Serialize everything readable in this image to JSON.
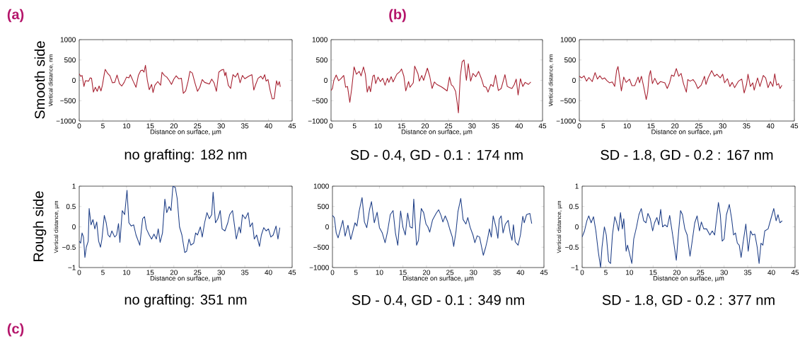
{
  "chart_data": [
    {
      "type": "line",
      "xlabel": "Distance on surface, µm",
      "ylabel": "Vertical distance, nm",
      "color": "#a51d2d",
      "xlim": [
        0,
        45
      ],
      "xticks": [
        0,
        5,
        10,
        15,
        20,
        25,
        30,
        35,
        40,
        45
      ],
      "ylim": [
        -1000,
        1000
      ],
      "yticks": [
        {
          "value": -1000,
          "label": "−1000"
        },
        {
          "value": -500,
          "label": "−500"
        },
        0,
        500,
        1000
      ],
      "annotations": [
        "(a)",
        "Smooth side",
        "no grafting: 182 nm"
      ],
      "x": [
        0,
        0.3,
        0.6,
        1,
        1.3,
        2,
        2.3,
        2.6,
        3,
        3.4,
        3.8,
        4.2,
        4.6,
        4.9,
        5.3,
        5.5,
        6,
        6.5,
        7,
        7.5,
        8,
        8.5,
        9,
        9.5,
        10,
        10.5,
        10.8,
        11.4,
        12,
        12.5,
        13,
        13.4,
        13.7,
        14,
        14.4,
        14.8,
        15.3,
        15.6,
        16,
        16.6,
        17.2,
        17.5,
        18,
        18.5,
        19,
        19.5,
        20,
        20.5,
        21,
        21.6,
        22,
        22.5,
        23,
        23.4,
        23.9,
        24.5,
        25,
        25.5,
        26,
        26.5,
        27.5,
        28,
        28.5,
        29,
        29.5,
        30,
        30.5,
        30.8,
        31,
        31.5,
        32,
        32.5,
        33,
        33.5,
        34,
        34.5,
        35,
        35.8,
        36.5,
        36.9,
        37.3,
        37.8,
        38.4,
        38.8,
        39.2,
        39.5,
        39.9,
        40.4,
        40.8,
        41.2,
        41.7,
        42,
        42.3,
        42.5
      ],
      "values": [
        160,
        100,
        120,
        -150,
        -10,
        -20,
        60,
        50,
        -290,
        -170,
        -270,
        -140,
        -260,
        -120,
        160,
        270,
        170,
        110,
        -60,
        -50,
        130,
        -80,
        -140,
        -50,
        80,
        60,
        140,
        -20,
        -170,
        120,
        240,
        250,
        200,
        370,
        0,
        -230,
        -100,
        -300,
        -120,
        -30,
        -120,
        200,
        120,
        80,
        0,
        -100,
        30,
        110,
        40,
        50,
        -320,
        -260,
        -30,
        220,
        180,
        -80,
        -270,
        -170,
        20,
        -50,
        -90,
        30,
        -60,
        -270,
        200,
        250,
        270,
        110,
        200,
        -120,
        -200,
        140,
        80,
        180,
        -60,
        120,
        40,
        100,
        140,
        -240,
        -100,
        50,
        100,
        30,
        140,
        -20,
        20,
        -270,
        -460,
        -450,
        -10,
        -120,
        -30,
        -160
      ]
    },
    {
      "type": "line",
      "xlabel": "Distance on surface, µm",
      "color": "#a51d2d",
      "xlim": [
        0,
        45
      ],
      "xticks": [
        0,
        5,
        10,
        15,
        20,
        25,
        30,
        35,
        40,
        45
      ],
      "ylim": [
        -1000,
        1000
      ],
      "yticks": [
        {
          "value": -1000,
          "label": "−1000"
        },
        {
          "value": -500,
          "label": "−500"
        },
        0,
        500,
        1000
      ],
      "annotations": [
        "(b)",
        "SD - 0.4, GD - 0.1 : 174 nm"
      ],
      "x": [
        0,
        0.3,
        0.6,
        1.1,
        1.6,
        2.1,
        2.7,
        3.1,
        3.5,
        4,
        4.4,
        4.9,
        5.4,
        6,
        6.4,
        6.9,
        7.3,
        7.7,
        8.1,
        8.4,
        8.9,
        9.2,
        9.5,
        10,
        10.5,
        11,
        11.5,
        12,
        12.3,
        12.8,
        13.2,
        14,
        14.7,
        15,
        15.5,
        15.9,
        16.5,
        16.8,
        17.5,
        17.8,
        18.5,
        18.8,
        19.3,
        19.7,
        20.5,
        21,
        21.5,
        22,
        22.5,
        23.5,
        24,
        24.7,
        25.2,
        25.6,
        26,
        26.5,
        26.9,
        27.1,
        27.5,
        27.9,
        28.3,
        28.8,
        29.2,
        29.7,
        30.2,
        30.8,
        31.4,
        32,
        32.5,
        33,
        33.4,
        34,
        34.5,
        35,
        35.6,
        36.2,
        36.8,
        37,
        37.5,
        38,
        38.5,
        39,
        39.4,
        39.8,
        40.3,
        40.8,
        41.3,
        42,
        42.5
      ],
      "values": [
        -250,
        -200,
        0,
        130,
        -10,
        40,
        120,
        -170,
        -150,
        -540,
        -200,
        330,
        150,
        220,
        110,
        330,
        150,
        -290,
        -140,
        -280,
        100,
        130,
        -80,
        80,
        -30,
        50,
        -120,
        50,
        -50,
        90,
        -40,
        150,
        220,
        280,
        100,
        -260,
        -30,
        -170,
        -60,
        350,
        160,
        -20,
        120,
        0,
        300,
        100,
        -200,
        -40,
        -100,
        -160,
        -200,
        -260,
        80,
        -110,
        -150,
        -270,
        -600,
        -800,
        100,
        460,
        500,
        0,
        410,
        -20,
        170,
        90,
        220,
        40,
        -150,
        -170,
        -290,
        -100,
        -150,
        130,
        -250,
        -200,
        50,
        140,
        -150,
        -180,
        -200,
        -100,
        30,
        -360,
        40,
        -150,
        -50,
        -100,
        -40
      ]
    },
    {
      "type": "line",
      "xlabel": "Distance on surface, µm",
      "ylabel": "Vertical distance, nm",
      "color": "#a51d2d",
      "xlim": [
        0,
        45
      ],
      "xticks": [
        0,
        5,
        10,
        15,
        20,
        25,
        30,
        35,
        40,
        45
      ],
      "ylim": [
        -1000,
        1000
      ],
      "yticks": [
        {
          "value": -1000,
          "label": "−1000"
        },
        {
          "value": -500,
          "label": "−500"
        },
        0,
        500,
        1000
      ],
      "annotations": [
        "SD - 1.8, GD - 0.2 : 167 nm"
      ],
      "x": [
        0,
        0.5,
        1,
        1.5,
        2,
        2.7,
        3.3,
        3.8,
        4.3,
        4.8,
        5.3,
        5.8,
        6.3,
        6.9,
        7.4,
        7.8,
        8.1,
        8.5,
        8.8,
        9.3,
        9.8,
        10.5,
        11,
        11.6,
        12.3,
        12.6,
        13,
        13.5,
        14,
        14.3,
        14.6,
        14.9,
        15.3,
        15.8,
        16.4,
        17,
        17.9,
        18.4,
        18.9,
        19.3,
        19.8,
        20.3,
        20.8,
        21.3,
        21.8,
        22.4,
        22.7,
        23.2,
        23.8,
        24.3,
        24.8,
        25.5,
        26.2,
        26.5,
        27,
        27.7,
        28.3,
        28.8,
        29.5,
        30,
        30.4,
        31,
        31.5,
        32,
        32.5,
        33.3,
        34,
        34.5,
        35,
        35.3,
        35.8,
        36.3,
        36.6,
        37.3,
        37.8,
        38.5,
        39,
        39.5,
        40,
        40.5,
        40.9,
        41.3,
        41.7,
        42,
        42.4
      ],
      "values": [
        100,
        60,
        110,
        -20,
        70,
        -30,
        190,
        30,
        110,
        30,
        60,
        -10,
        -60,
        -40,
        -150,
        240,
        340,
        0,
        -260,
        80,
        -50,
        30,
        -130,
        -130,
        80,
        -60,
        100,
        -170,
        -470,
        -300,
        100,
        240,
        -80,
        50,
        -100,
        -30,
        -60,
        -200,
        -60,
        130,
        100,
        290,
        100,
        170,
        -80,
        -290,
        20,
        -20,
        20,
        -60,
        -200,
        -120,
        100,
        -100,
        70,
        240,
        100,
        150,
        60,
        150,
        -60,
        40,
        -150,
        -50,
        -180,
        -20,
        30,
        -310,
        -100,
        150,
        -150,
        -60,
        -240,
        60,
        -150,
        120,
        60,
        -180,
        -30,
        -150,
        160,
        -120,
        -80,
        -200,
        -120
      ]
    },
    {
      "type": "line",
      "xlabel": "Distance on surface, µm",
      "ylabel": "Vertical distance, µm",
      "color": "#1f3f87",
      "xlim": [
        0,
        45
      ],
      "xticks": [
        0,
        5,
        10,
        15,
        20,
        25,
        30,
        35,
        40,
        45
      ],
      "ylim": [
        -1,
        1
      ],
      "yticks": [
        {
          "value": -1,
          "label": "−1"
        },
        {
          "value": -0.5,
          "label": "−0.5"
        },
        0,
        0.5,
        1
      ],
      "annotations": [
        "Rough side",
        "(c)",
        "no grafting: 351 nm"
      ],
      "x": [
        0,
        0.3,
        0.6,
        0.9,
        1.2,
        1.5,
        1.9,
        2.1,
        2.5,
        2.9,
        3.3,
        3.7,
        4.1,
        4.5,
        4.8,
        5.3,
        5.7,
        6.1,
        6.5,
        6.9,
        7.5,
        7.9,
        8.3,
        8.6,
        9.1,
        9.6,
        10.1,
        10.5,
        11,
        11.5,
        12,
        12.8,
        13.4,
        13.8,
        14.2,
        14.8,
        15.3,
        15.8,
        16.3,
        16.7,
        17.1,
        17.6,
        18.1,
        18.5,
        19,
        19.4,
        19.8,
        20.3,
        20.7,
        21.2,
        21.7,
        22.3,
        22.7,
        23.2,
        23.6,
        24.2,
        24.6,
        25,
        25.6,
        26,
        26.5,
        27,
        27.5,
        28,
        28.3,
        28.8,
        29.3,
        29.8,
        30.2,
        30.8,
        31.4,
        31.8,
        32.4,
        32.8,
        33.2,
        33.8,
        34.1,
        34.5,
        35.1,
        35.7,
        36.1,
        36.6,
        37,
        37.5,
        38.1,
        38.5,
        39,
        39.5,
        40,
        40.5,
        41,
        41.6,
        42,
        42.4
      ],
      "values": [
        -0.35,
        -0.4,
        -0.15,
        -0.25,
        -0.75,
        -0.5,
        -0.35,
        0.45,
        0.05,
        0.18,
        -0.05,
        0.12,
        -0.35,
        -0.5,
        -0.3,
        0.28,
        0.1,
        -0.2,
        -0.25,
        -0.1,
        -0.25,
        -0.2,
        0.08,
        -0.38,
        0.4,
        0.3,
        0.9,
        0.1,
        0.02,
        0.05,
        -0.2,
        -0.45,
        0.2,
        0.25,
        -0.05,
        -0.2,
        -0.3,
        -0.18,
        -0.3,
        -0.05,
        -0.38,
        -0.15,
        0.68,
        0.35,
        0.5,
        0.4,
        1,
        0.97,
        0.7,
        0,
        -0.2,
        -0.63,
        -0.6,
        -0.3,
        -0.45,
        -0.4,
        -0.15,
        -0.2,
        0,
        -0.25,
        0.1,
        0.35,
        0.2,
        0.3,
        0.85,
        0.1,
        0.2,
        0.4,
        -0.05,
        -0.1,
        0.1,
        0.3,
        0.4,
        0.05,
        -0.3,
        0,
        -0.15,
        0.3,
        0.2,
        0.35,
        0,
        0.1,
        -0.3,
        -0.2,
        -0.48,
        -0.2,
        -0.02,
        -0.1,
        -0.05,
        -0.25,
        -0.2,
        0.02,
        -0.3,
        -0.02
      ]
    },
    {
      "type": "line",
      "xlabel": "Distance on surface, µm",
      "color": "#1f3f87",
      "xlim": [
        0,
        45
      ],
      "xticks": [
        0,
        5,
        10,
        15,
        20,
        25,
        30,
        35,
        40,
        45
      ],
      "ylim": [
        -1000,
        1000
      ],
      "yticks": [
        {
          "value": -1000,
          "label": "−1000"
        },
        {
          "value": -500,
          "label": "−500"
        },
        0,
        500,
        1000
      ],
      "annotations": [
        "SD - 0.4, GD - 0.1 : 349 nm"
      ],
      "x": [
        0,
        0.4,
        0.8,
        1.2,
        1.7,
        2.2,
        2.7,
        3.3,
        3.9,
        4.4,
        4.8,
        5.2,
        5.7,
        6.3,
        6.8,
        7.3,
        7.9,
        8.3,
        8.9,
        9.5,
        10,
        10.6,
        11.2,
        11.7,
        12.3,
        12.9,
        13.4,
        13.9,
        14.5,
        15,
        15.5,
        16,
        16.5,
        17,
        17.3,
        17.9,
        18.3,
        18.9,
        19.4,
        19.9,
        20.3,
        20.7,
        21.3,
        22.1,
        22.6,
        23.1,
        23.5,
        24,
        24.5,
        25,
        25.5,
        25.8,
        26.3,
        26.7,
        27.3,
        27.8,
        28.4,
        28.8,
        29.3,
        29.9,
        30.3,
        30.8,
        31.3,
        32.1,
        32.6,
        33,
        33.4,
        33.8,
        34.2,
        34.8,
        35.2,
        35.5,
        35.9,
        36.3,
        36.8,
        37.4,
        37.8,
        38.2,
        38.5,
        38.9,
        39.5,
        40,
        40.5,
        40.8,
        41.3,
        42,
        42.4
      ],
      "values": [
        280,
        230,
        -150,
        -270,
        -60,
        160,
        -230,
        40,
        -310,
        -80,
        100,
        20,
        400,
        720,
        120,
        -20,
        430,
        620,
        100,
        360,
        -20,
        -150,
        -390,
        -130,
        300,
        400,
        -150,
        -450,
        390,
        -10,
        -200,
        340,
        0,
        -30,
        680,
        -450,
        -330,
        450,
        350,
        70,
        0,
        -130,
        170,
        340,
        420,
        280,
        120,
        270,
        130,
        -70,
        -250,
        -480,
        -100,
        370,
        700,
        180,
        70,
        230,
        -10,
        -200,
        -390,
        -220,
        -250,
        -700,
        -500,
        -300,
        -50,
        -250,
        270,
        -10,
        -280,
        190,
        270,
        -150,
        70,
        160,
        -150,
        -330,
        50,
        -370,
        -450,
        -200,
        260,
        100,
        300,
        330,
        80
      ]
    },
    {
      "type": "line",
      "xlabel": "Distance on surface, µm",
      "ylabel": "Vertical distance, µm",
      "color": "#1f3f87",
      "xlim": [
        0,
        45
      ],
      "xticks": [
        0,
        5,
        10,
        15,
        20,
        25,
        30,
        35,
        40,
        45
      ],
      "ylim": [
        -1,
        1
      ],
      "yticks": [
        {
          "value": -1,
          "label": "−1"
        },
        {
          "value": -0.5,
          "label": "−0.5"
        },
        0,
        0.5,
        1
      ],
      "annotations": [
        "SD - 1.8, GD - 0.2 : 377 nm"
      ],
      "x": [
        0,
        0.5,
        1,
        1.4,
        1.9,
        2.4,
        2.9,
        3.4,
        3.9,
        4.2,
        4.7,
        5.1,
        5.6,
        6,
        6.4,
        6.9,
        7.3,
        7.7,
        8.1,
        8.5,
        8.8,
        9.3,
        9.6,
        10,
        10.5,
        10.9,
        11.5,
        12,
        12.5,
        13,
        13.5,
        13.9,
        14.4,
        14.9,
        15.3,
        15.8,
        16.2,
        16.6,
        17,
        17.5,
        18,
        18.5,
        19,
        19.5,
        19.9,
        20.4,
        20.8,
        21.2,
        21.7,
        22.2,
        22.8,
        23.2,
        23.8,
        24.3,
        24.8,
        25.2,
        25.7,
        26.3,
        27,
        27.5,
        28,
        28.4,
        28.8,
        29.2,
        29.6,
        30,
        30.5,
        31.1,
        31.6,
        32,
        32.4,
        32.8,
        33.2,
        33.6,
        34,
        34.6,
        35.1,
        35.6,
        36,
        36.5,
        37,
        37.4,
        37.8,
        38.2,
        38.6,
        39.3,
        39.9,
        40.5,
        41,
        41.4,
        41.8,
        42.3
      ],
      "values": [
        -0.25,
        -0.1,
        0.15,
        0.27,
        0.1,
        0.25,
        -0.1,
        -0.6,
        -1,
        -0.5,
        0,
        -0.2,
        -0.85,
        -0.9,
        -0.2,
        0.25,
        0.1,
        -0.1,
        0.35,
        -0.05,
        0.2,
        -0.6,
        -0.45,
        -0.65,
        -0.9,
        -0.3,
        0,
        0.3,
        0.45,
        0.15,
        0.1,
        0.33,
        0.2,
        -0.1,
        0.1,
        0.23,
        0.05,
        0.43,
        0,
        0.05,
        0,
        0.28,
        -0.1,
        -0.5,
        -0.82,
        -0.1,
        0.4,
        0.3,
        -0.05,
        -0.2,
        -0.72,
        -0.4,
        0.1,
        0.27,
        -0.1,
        0.12,
        -0.05,
        -0.05,
        -0.2,
        -0.1,
        -0.2,
        0.2,
        0.6,
        0.3,
        -0.35,
        -0.3,
        0.3,
        0.55,
        0.2,
        -0.2,
        -0.15,
        -0.4,
        -0.45,
        -0.75,
        -0.4,
        0.07,
        -0.6,
        -0.1,
        -0.2,
        -0.18,
        -0.5,
        -0.9,
        -0.4,
        -0.45,
        -0.1,
        -0.05,
        0.2,
        0.45,
        0.15,
        0.3,
        0.1,
        0.15
      ]
    }
  ]
}
